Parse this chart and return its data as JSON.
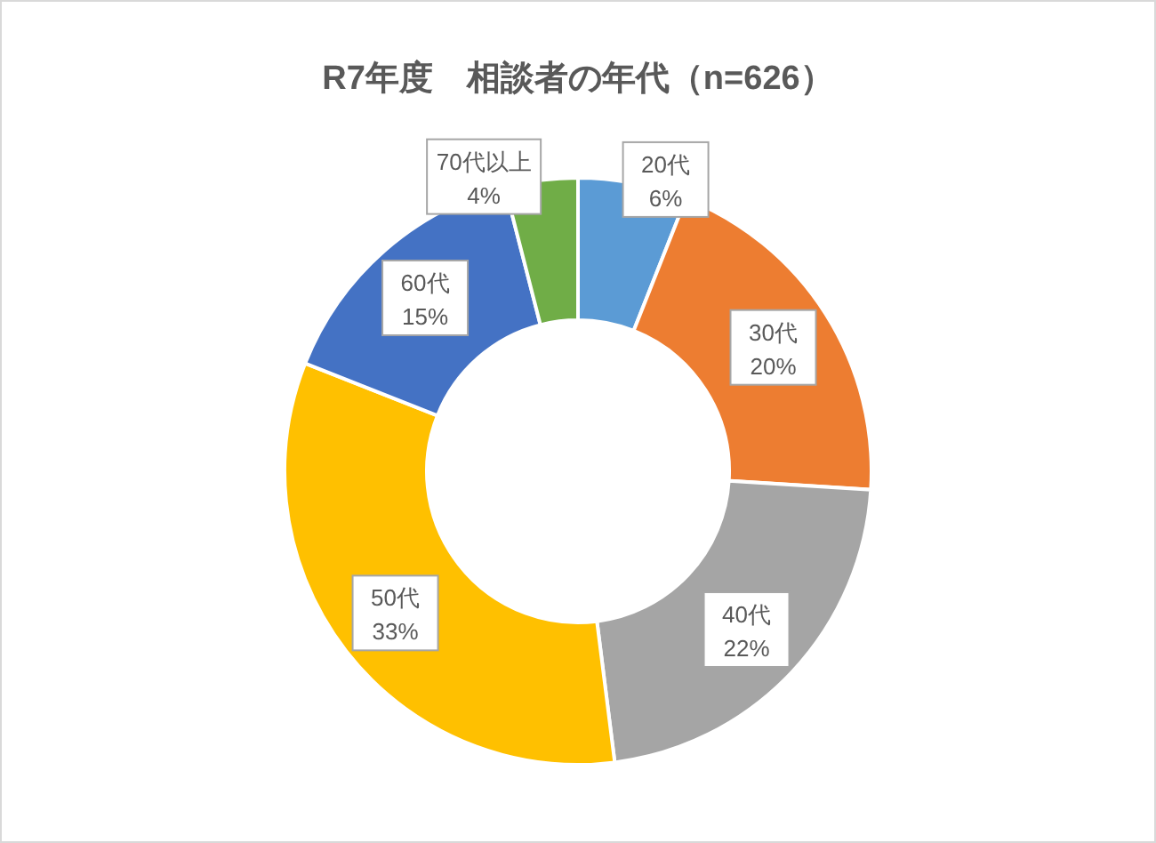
{
  "chart_data": {
    "type": "donut",
    "title": "R7年度　相談者の年代（n=626）",
    "categories": [
      "20代",
      "30代",
      "40代",
      "50代",
      "60代",
      "70代以上"
    ],
    "values": [
      6,
      20,
      22,
      33,
      15,
      4
    ],
    "value_labels": [
      "6%",
      "20%",
      "22%",
      "33%",
      "15%",
      "4%"
    ],
    "colors": [
      "#5b9bd5",
      "#ed7d31",
      "#a5a5a5",
      "#ffc000",
      "#4472c4",
      "#70ad47"
    ],
    "legend": false
  }
}
